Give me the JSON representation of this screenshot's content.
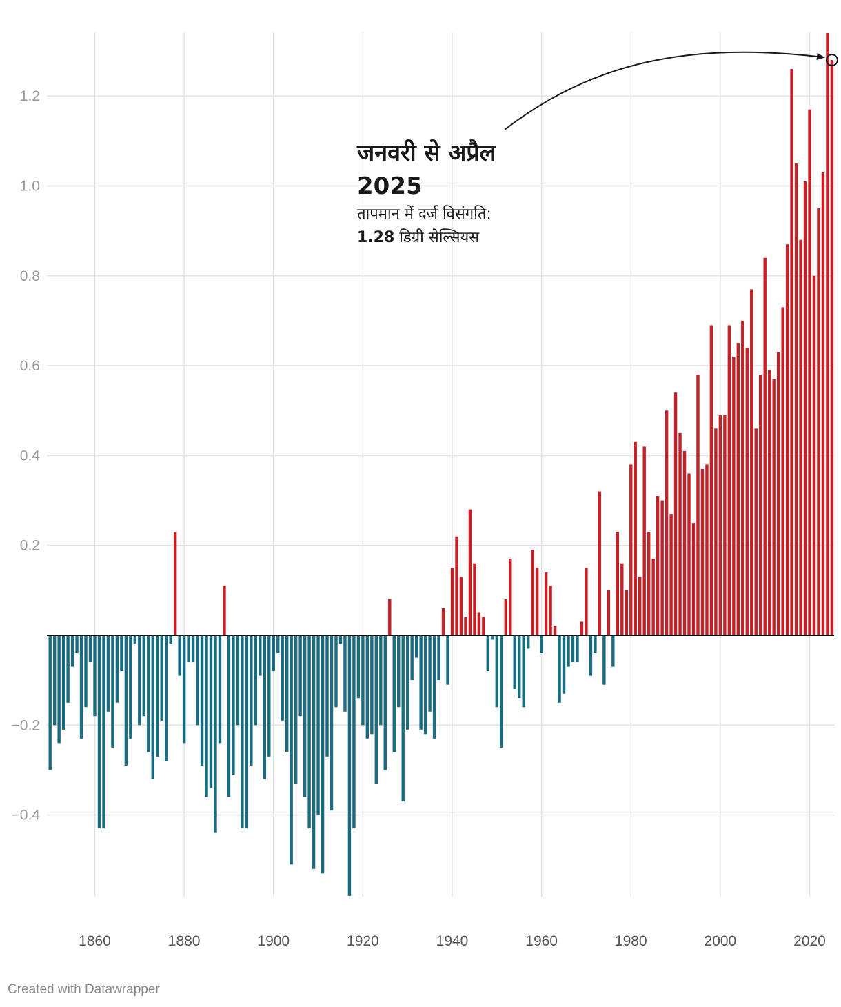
{
  "chart_data": {
    "type": "bar",
    "title": "",
    "xlabel": "",
    "ylabel": "",
    "ylim": [
      -0.58,
      1.34
    ],
    "xlim": [
      1849,
      2025
    ],
    "x_ticks": [
      1860,
      1880,
      1900,
      1920,
      1940,
      1960,
      1980,
      2000,
      2020
    ],
    "x_tick_labels": [
      "1860",
      "1880",
      "1900",
      "1920",
      "1940",
      "1960",
      "1980",
      "2000",
      "2020"
    ],
    "y_ticks": [
      -0.4,
      -0.2,
      0.2,
      0.4,
      0.6,
      0.8,
      1.0,
      1.2
    ],
    "y_tick_labels": [
      "−0.4",
      "−0.2",
      "0.2",
      "0.4",
      "0.6",
      "0.8",
      "1.0",
      "1.2"
    ],
    "positive_color": "#c42127",
    "negative_color": "#1a6b80",
    "start_year": 1850,
    "values": [
      -0.3,
      -0.2,
      -0.24,
      -0.21,
      -0.15,
      -0.07,
      -0.04,
      -0.23,
      -0.16,
      -0.06,
      -0.18,
      -0.43,
      -0.43,
      -0.17,
      -0.25,
      -0.15,
      -0.08,
      -0.29,
      -0.23,
      -0.02,
      -0.2,
      -0.18,
      -0.26,
      -0.32,
      -0.27,
      -0.19,
      -0.28,
      -0.02,
      0.23,
      -0.09,
      -0.24,
      -0.06,
      -0.06,
      -0.2,
      -0.29,
      -0.36,
      -0.34,
      -0.44,
      -0.24,
      0.11,
      -0.36,
      -0.31,
      -0.2,
      -0.43,
      -0.43,
      -0.29,
      -0.2,
      -0.09,
      -0.32,
      -0.27,
      -0.08,
      -0.04,
      -0.19,
      -0.26,
      -0.51,
      -0.33,
      -0.18,
      -0.36,
      -0.43,
      -0.52,
      -0.4,
      -0.53,
      -0.27,
      -0.39,
      -0.16,
      -0.02,
      -0.17,
      -0.58,
      -0.43,
      -0.14,
      -0.2,
      -0.23,
      -0.22,
      -0.33,
      -0.2,
      -0.3,
      0.08,
      -0.26,
      -0.16,
      -0.37,
      -0.21,
      -0.1,
      -0.05,
      -0.21,
      -0.22,
      -0.17,
      -0.23,
      -0.1,
      0.06,
      -0.11,
      0.15,
      0.22,
      0.13,
      0.04,
      0.28,
      0.16,
      0.05,
      0.04,
      -0.08,
      -0.01,
      -0.16,
      -0.25,
      0.08,
      0.17,
      -0.12,
      -0.14,
      -0.16,
      -0.03,
      0.19,
      0.15,
      -0.04,
      0.14,
      0.11,
      0.02,
      -0.15,
      -0.13,
      -0.07,
      -0.06,
      -0.06,
      0.03,
      0.15,
      -0.09,
      -0.04,
      0.32,
      -0.11,
      0.1,
      -0.07,
      0.23,
      0.16,
      0.1,
      0.38,
      0.43,
      0.13,
      0.42,
      0.23,
      0.17,
      0.31,
      0.3,
      0.5,
      0.27,
      0.54,
      0.45,
      0.41,
      0.36,
      0.25,
      0.58,
      0.37,
      0.38,
      0.69,
      0.46,
      0.49,
      0.49,
      0.69,
      0.62,
      0.65,
      0.7,
      0.64,
      0.77,
      0.46,
      0.58,
      0.84,
      0.59,
      0.57,
      0.63,
      0.73,
      0.87,
      1.26,
      1.05,
      0.88,
      1.01,
      1.17,
      0.8,
      0.95,
      1.03,
      1.34,
      1.28
    ],
    "highlight": {
      "year": 2025,
      "value": 1.28
    },
    "annotation": {
      "title": "जनवरी से अप्रैल 2025",
      "body": "तापमान में दर्ज विसंगति:",
      "value": "1.28",
      "unit": "डिग्री सेल्सियस"
    }
  },
  "footer": {
    "credit": "Created with Datawrapper"
  }
}
